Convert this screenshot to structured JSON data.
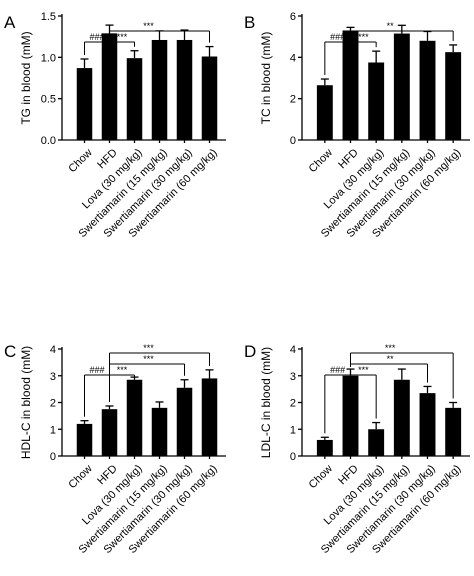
{
  "chart_data": [
    {
      "panel": "A",
      "type": "bar",
      "ylabel": "TG in blood (mM)",
      "ylim": [
        0,
        1.5
      ],
      "yticks": [
        "0.0",
        "0.5",
        "1.0",
        "1.5"
      ],
      "categories": [
        "Chow",
        "HFD",
        "Lova (30 mg/kg)",
        "Swertiamarin (15 mg/kg)",
        "Swertiamarin (30 mg/kg)",
        "Swertiamarin (60 mg/kg)"
      ],
      "values": [
        0.87,
        1.29,
        0.99,
        1.21,
        1.21,
        1.01
      ],
      "errors": [
        0.11,
        0.1,
        0.09,
        0.11,
        0.12,
        0.12
      ],
      "significance": [
        {
          "from": 0,
          "to": 1,
          "label": "###",
          "level": 1
        },
        {
          "from": 1,
          "to": 2,
          "label": "***",
          "level": 1
        },
        {
          "from": 1,
          "to": 5,
          "label": "***",
          "level": 2
        }
      ]
    },
    {
      "panel": "B",
      "type": "bar",
      "ylabel": "TC in blood (mM)",
      "ylim": [
        0,
        6
      ],
      "yticks": [
        "0",
        "2",
        "4",
        "6"
      ],
      "categories": [
        "Chow",
        "HFD",
        "Lova (30 mg/kg)",
        "Swertiamarin (15 mg/kg)",
        "Swertiamarin (30 mg/kg)",
        "Swertiamarin (60 mg/kg)"
      ],
      "values": [
        2.65,
        5.3,
        3.75,
        5.15,
        4.8,
        4.25
      ],
      "errors": [
        0.3,
        0.15,
        0.55,
        0.4,
        0.45,
        0.35
      ],
      "significance": [
        {
          "from": 0,
          "to": 1,
          "label": "###",
          "level": 1
        },
        {
          "from": 1,
          "to": 2,
          "label": "***",
          "level": 1
        },
        {
          "from": 1,
          "to": 5,
          "label": "**",
          "level": 2
        }
      ]
    },
    {
      "panel": "C",
      "type": "bar",
      "ylabel": "HDL-C in blood (mM)",
      "ylim": [
        0,
        4
      ],
      "yticks": [
        "0",
        "1",
        "2",
        "3",
        "4"
      ],
      "categories": [
        "Chow",
        "HFD",
        "Lova (30 mg/kg)",
        "Swertiamarin (15 mg/kg)",
        "Swertiamarin (30 mg/kg)",
        "Swertiamarin (60 mg/kg)"
      ],
      "values": [
        1.2,
        1.75,
        2.85,
        1.8,
        2.55,
        2.9
      ],
      "errors": [
        0.12,
        0.12,
        0.1,
        0.22,
        0.3,
        0.32
      ],
      "significance": [
        {
          "from": 0,
          "to": 1,
          "label": "###",
          "level": 1
        },
        {
          "from": 1,
          "to": 2,
          "label": "***",
          "level": 1
        },
        {
          "from": 1,
          "to": 4,
          "label": "***",
          "level": 2
        },
        {
          "from": 1,
          "to": 5,
          "label": "***",
          "level": 3
        }
      ]
    },
    {
      "panel": "D",
      "type": "bar",
      "ylabel": "LDL-C in blood (mM)",
      "ylim": [
        0,
        4
      ],
      "yticks": [
        "0",
        "1",
        "2",
        "3",
        "4"
      ],
      "categories": [
        "Chow",
        "HFD",
        "Lova (30 mg/kg)",
        "Swertiamarin (15 mg/kg)",
        "Swertiamarin (30 mg/kg)",
        "Swertiamarin (60 mg/kg)"
      ],
      "values": [
        0.6,
        3.0,
        1.0,
        2.85,
        2.35,
        1.8
      ],
      "errors": [
        0.1,
        0.25,
        0.25,
        0.4,
        0.25,
        0.2
      ],
      "significance": [
        {
          "from": 0,
          "to": 1,
          "label": "###",
          "level": 1
        },
        {
          "from": 1,
          "to": 2,
          "label": "***",
          "level": 1
        },
        {
          "from": 1,
          "to": 4,
          "label": "**",
          "level": 2
        },
        {
          "from": 1,
          "to": 5,
          "label": "***",
          "level": 3
        }
      ]
    }
  ],
  "colors": {
    "bar": "#000000",
    "axis": "#000000",
    "background": "#ffffff"
  }
}
